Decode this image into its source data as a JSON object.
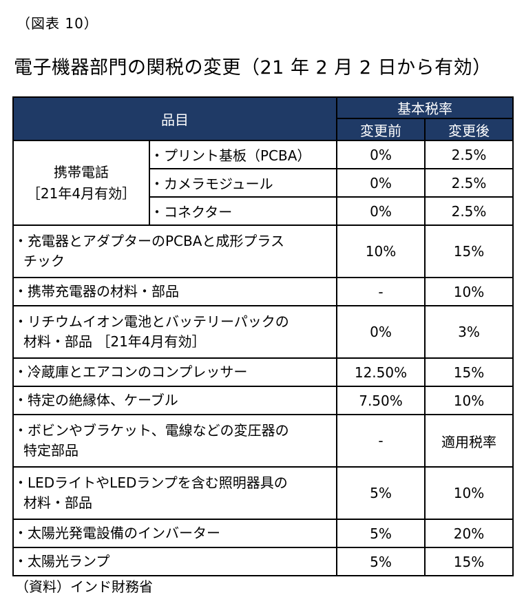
{
  "figure_label": "（図表 10）",
  "title": "電子機器部門の関税の変更（21 年 2 月 2 日から有効）",
  "table": {
    "header": {
      "item": "品目",
      "rate_group": "基本税率",
      "before": "変更前",
      "after": "変更後"
    },
    "mobile_group": {
      "line1": "携帯電話",
      "line2": "［21年4月有効］",
      "rows": [
        {
          "item": "・プリント基板（PCBA）",
          "before": "0%",
          "after": "2.5%"
        },
        {
          "item": "・カメラモジュール",
          "before": "0%",
          "after": "2.5%"
        },
        {
          "item": "・コネクター",
          "before": "0%",
          "after": "2.5%"
        }
      ]
    },
    "rows": [
      {
        "line1": "・充電器とアダプターのPCBAと成形プラス",
        "line2": "チック",
        "before": "10%",
        "after": "15%"
      },
      {
        "line1": "・携帯充電器の材料・部品",
        "line2": "",
        "before": "-",
        "after": "10%"
      },
      {
        "line1": "・リチウムイオン電池とバッテリーパックの",
        "line2": "材料・部品 ［21年4月有効］",
        "before": "0%",
        "after": "3%"
      },
      {
        "line1": "・冷蔵庫とエアコンのコンプレッサー",
        "line2": "",
        "before": "12.50%",
        "after": "15%"
      },
      {
        "line1": "・特定の絶縁体、ケーブル",
        "line2": "",
        "before": "7.50%",
        "after": "10%"
      },
      {
        "line1": "・ボビンやブラケット、電線などの変圧器の",
        "line2": "特定部品",
        "before": "-",
        "after": "適用税率"
      },
      {
        "line1": "・LEDライトやLEDランプを含む照明器具の",
        "line2": "材料・部品",
        "before": "5%",
        "after": "10%"
      },
      {
        "line1": "・太陽光発電設備のインバーター",
        "line2": "",
        "before": "5%",
        "after": "20%"
      },
      {
        "line1": "・太陽光ランプ",
        "line2": "",
        "before": "5%",
        "after": "15%"
      }
    ]
  },
  "source": "（資料）インド財務省",
  "colors": {
    "header_bg": "#1f3a66",
    "header_text": "#ffffff"
  }
}
